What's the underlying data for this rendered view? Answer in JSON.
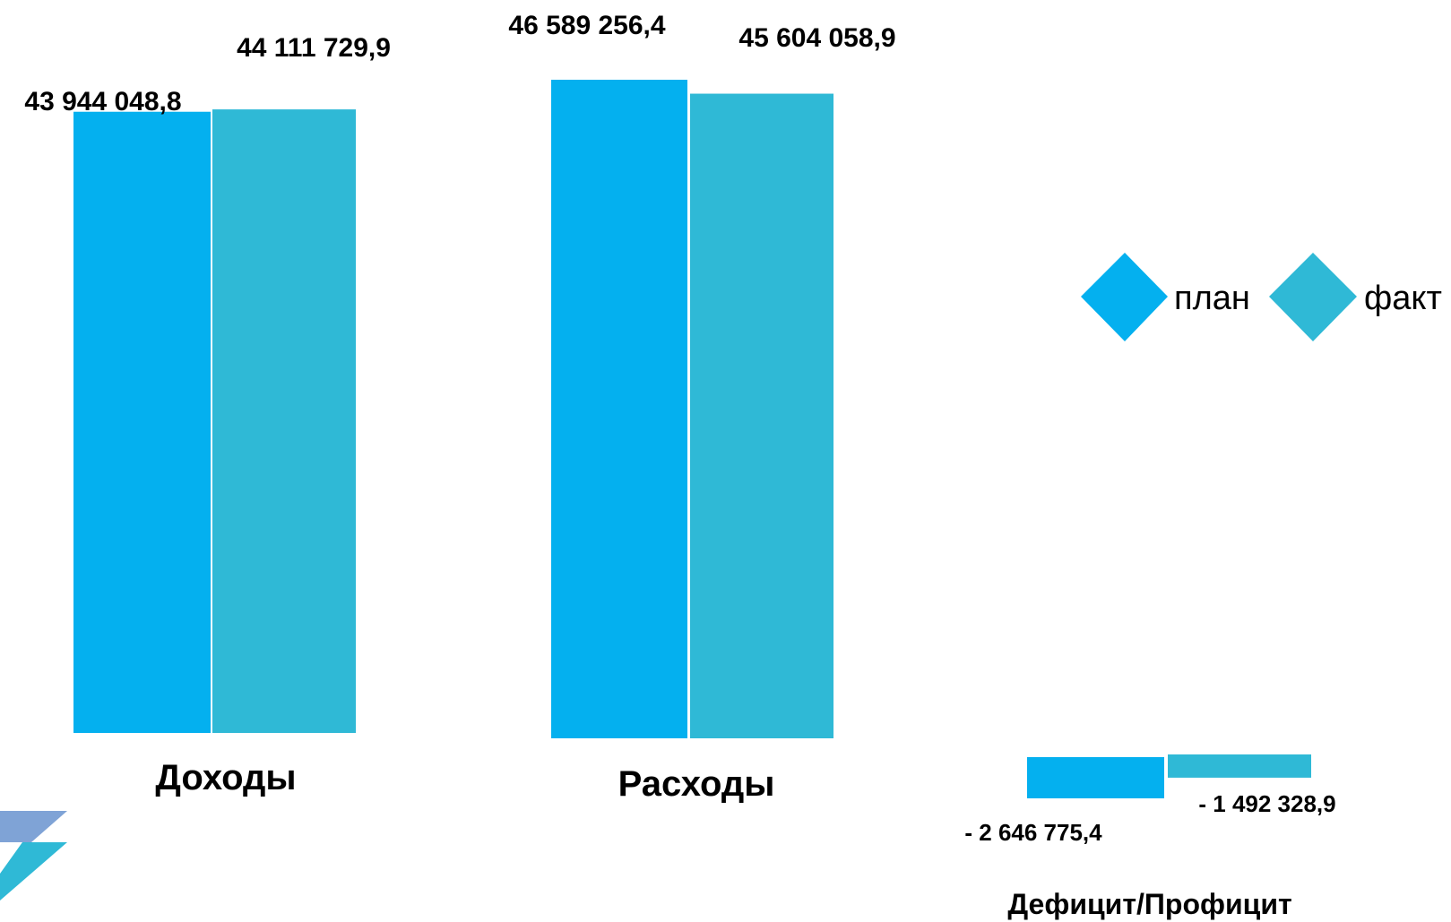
{
  "chart_data": {
    "type": "bar",
    "categories": [
      "Доходы",
      "Расходы",
      "Дефицит/Профицит"
    ],
    "series": [
      {
        "name": "план",
        "color": "#04b0ef",
        "values": [
          43944048.8,
          46589256.4,
          -2646775.4
        ]
      },
      {
        "name": "факт",
        "color": "#2fb9d6",
        "values": [
          44111729.9,
          45604058.9,
          -1492328.9
        ]
      }
    ],
    "value_labels": [
      [
        "43 944 048,8",
        "46 589 256,4",
        "- 2 646 775,4"
      ],
      [
        "44 111 729,9",
        "45 604 058,9",
        "- 1 492 328,9"
      ]
    ],
    "legend": {
      "placement": "right",
      "marker": "diamond"
    },
    "grid": false
  },
  "decor": {
    "logo_colors": [
      "#7fa3d6",
      "#2fb9d6"
    ],
    "logo_icon": "corner-logo-icon"
  }
}
